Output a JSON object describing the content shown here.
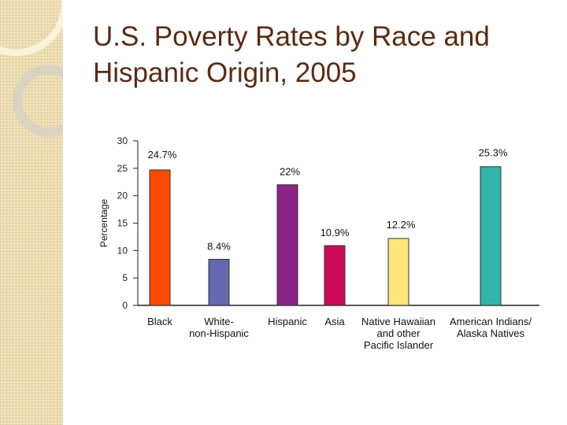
{
  "slide": {
    "title_line1": "U.S. Poverty Rates by Race and",
    "title_line2": "Hispanic Origin, 2005"
  },
  "colors": {
    "title": "#5b2a14",
    "sidebar": "#f1e2bb"
  },
  "chart_data": {
    "type": "bar",
    "title": "",
    "xlabel": "",
    "ylabel": "Percentage",
    "ylim": [
      0,
      30
    ],
    "yticks": [
      0,
      5,
      10,
      15,
      20,
      25,
      30
    ],
    "categories": [
      [
        "Black"
      ],
      [
        "White-",
        "non-Hispanic"
      ],
      [
        "Hispanic"
      ],
      [
        "Asia"
      ],
      [
        "Native Hawaiian",
        "and other",
        "Pacific Islander"
      ],
      [
        "American Indians/",
        "Alaska Natives"
      ]
    ],
    "values": [
      24.7,
      8.4,
      22,
      10.9,
      12.2,
      25.3
    ],
    "value_labels": [
      "24.7%",
      "8.4%",
      "22%",
      "10.9%",
      "12.2%",
      "25.3%"
    ],
    "colors": [
      "#ff4a00",
      "#6468ac",
      "#8b2486",
      "#cc0a5a",
      "#ffe57a",
      "#2fb5aa"
    ]
  }
}
